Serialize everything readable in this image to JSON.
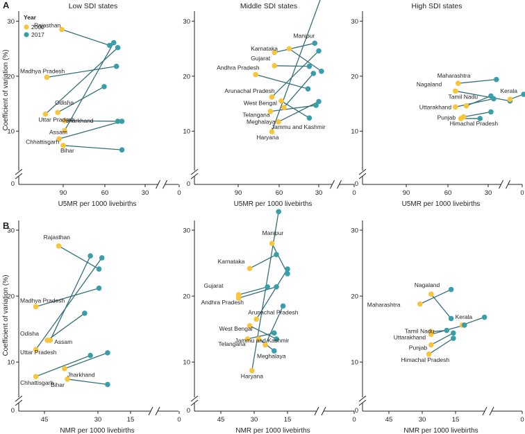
{
  "colors": {
    "y2000": "#f8c43a",
    "y2017": "#3a9ea8",
    "line": "#336f7a",
    "axis": "#231f20"
  },
  "chart_data": {
    "type": "scatter",
    "legend": {
      "title": "Year",
      "entries": [
        "2000",
        "2017"
      ],
      "placement": "top-left"
    },
    "ylabel": "Coefficient of variation (%)",
    "columns": [
      "Low SDI states",
      "Middle SDI states",
      "High SDI states"
    ],
    "rows": [
      {
        "letter": "A",
        "xlabel": "U5MR per 1000 livebirths",
        "xlim": [
          105,
          0
        ],
        "xticks": [
          "90",
          "60",
          "30",
          "0"
        ],
        "ylim": [
          5,
          35
        ],
        "yticks": [
          "10",
          "20",
          "30"
        ],
        "panels": [
          {
            "title": "Low SDI states",
            "states": [
              {
                "name": "Rajasthan",
                "x2000": 91,
                "y2000": 28.5,
                "x2017": 56,
                "y2017": 25.6
              },
              {
                "name": "Madhya Pradesh",
                "x2000": 102,
                "y2000": 19.8,
                "x2017": 51,
                "y2017": 21.8
              },
              {
                "name": "Odisha",
                "x2000": 94,
                "y2000": 13.4,
                "x2017": 60,
                "y2017": 18.1
              },
              {
                "name": "Uttar Pradesh",
                "x2000": 103,
                "y2000": 13.1,
                "x2017": 50,
                "y2017": 25.2
              },
              {
                "name": "Jharkhand",
                "x2000": 89,
                "y2000": 11.9,
                "x2017": 50,
                "y2017": 11.8
              },
              {
                "name": "Assam",
                "x2000": 89,
                "y2000": 10.1,
                "x2017": 53,
                "y2017": 26.1
              },
              {
                "name": "Chhattisgarh",
                "x2000": 93,
                "y2000": 8.6,
                "x2017": 47,
                "y2017": 11.8
              },
              {
                "name": "Bihar",
                "x2000": 90,
                "y2000": 7.4,
                "x2017": 47,
                "y2017": 6.6
              }
            ]
          },
          {
            "title": "Middle SDI states",
            "states": [
              {
                "name": "Manipur",
                "x2000": 52,
                "y2000": 25.0,
                "x2017": 28,
                "y2017": 20.9
              },
              {
                "name": "Karnataka",
                "x2000": 63,
                "y2000": 24.3,
                "x2017": 33,
                "y2017": 26.0
              },
              {
                "name": "Gujarat",
                "x2000": 63,
                "y2000": 21.9,
                "x2017": 37,
                "y2017": 21.8
              },
              {
                "name": "Andhra Pradesh",
                "x2000": 77,
                "y2000": 20.3,
                "x2017": 38,
                "y2017": 17.7
              },
              {
                "name": "Arunachal Pradesh",
                "x2000": 65,
                "y2000": 16.2,
                "x2017": 30,
                "y2017": 24.6
              },
              {
                "name": "West Bengal",
                "x2000": 58,
                "y2000": 15.5,
                "x2017": 37,
                "y2017": 12.4
              },
              {
                "name": "Telangana",
                "x2000": 66,
                "y2000": 13.6,
                "x2017": 32,
                "y2017": 14.7
              },
              {
                "name": "Jammu and Kashmir",
                "x2000": 56,
                "y2000": 14.3,
                "x2017": 34,
                "y2017": 20.5
              },
              {
                "name": "Meghalaya",
                "x2000": 60,
                "y2000": 11.7,
                "x2017": 30,
                "y2017": 15.4
              },
              {
                "name": "Haryana",
                "x2000": 65,
                "y2000": 9.9,
                "x2017": 28,
                "y2017": 34.5
              }
            ]
          },
          {
            "title": "High SDI states",
            "states": [
              {
                "name": "Maharashtra",
                "x2000": 52,
                "y2000": 18.7,
                "x2017": 24,
                "y2017": 19.4
              },
              {
                "name": "Nagaland",
                "x2000": 54,
                "y2000": 17.3,
                "x2017": 14,
                "y2017": 15.5
              },
              {
                "name": "Tamil Nadu",
                "x2000": 46,
                "y2000": 14.6,
                "x2017": 28,
                "y2017": 16.4
              },
              {
                "name": "Kerala",
                "x2000": 14,
                "y2000": 15.8,
                "x2017": 4,
                "y2017": 16.7
              },
              {
                "name": "Uttarakhand",
                "x2000": 54,
                "y2000": 14.4,
                "x2017": 26,
                "y2017": 15.9
              },
              {
                "name": "Punjab",
                "x2000": 48,
                "y2000": 12.6,
                "x2017": 28,
                "y2017": 13.5
              },
              {
                "name": "Himachal Pradesh",
                "x2000": 50,
                "y2000": 12.3,
                "x2017": 36,
                "y2017": 12.3
              }
            ]
          }
        ]
      },
      {
        "letter": "B",
        "xlabel": "NMR per 1000 livebirths",
        "xlim": [
          52,
          0
        ],
        "xticks": [
          "45",
          "30",
          "15",
          "0"
        ],
        "ylim": [
          5,
          33
        ],
        "yticks": [
          "10",
          "20",
          "30"
        ],
        "panels": [
          {
            "title": "Low SDI states",
            "states": [
              {
                "name": "Rajasthan",
                "x2000": 40,
                "y2000": 27.6,
                "x2017": 26,
                "y2017": 24.1
              },
              {
                "name": "Madhya Pradesh",
                "x2000": 48,
                "y2000": 18.4,
                "x2017": 26,
                "y2017": 21.2
              },
              {
                "name": "Odisha",
                "x2000": 44,
                "y2000": 13.3,
                "x2017": 31,
                "y2017": 17.4
              },
              {
                "name": "Assam",
                "x2000": 43,
                "y2000": 13.3,
                "x2017": 29,
                "y2017": 26.1
              },
              {
                "name": "Uttar Pradesh",
                "x2000": 48,
                "y2000": 11.9,
                "x2017": 25,
                "y2017": 25.8
              },
              {
                "name": "Jharkhand",
                "x2000": 38,
                "y2000": 9.0,
                "x2017": 23,
                "y2017": 11.4
              },
              {
                "name": "Chhattisgarh",
                "x2000": 48,
                "y2000": 7.8,
                "x2017": 29,
                "y2017": 11.0
              },
              {
                "name": "Bihar",
                "x2000": 37,
                "y2000": 7.4,
                "x2017": 23,
                "y2017": 6.6
              }
            ]
          },
          {
            "title": "Middle SDI states",
            "states": [
              {
                "name": "Manipur",
                "x2000": 22,
                "y2000": 28.0,
                "x2017": 15,
                "y2017": 23.4
              },
              {
                "name": "Karnataka",
                "x2000": 32,
                "y2000": 24.2,
                "x2017": 20,
                "y2017": 26.3
              },
              {
                "name": "Gujarat",
                "x2000": 37,
                "y2000": 20.2,
                "x2017": 24,
                "y2017": 21.4
              },
              {
                "name": "Andhra Pradesh",
                "x2000": 37,
                "y2000": 19.7,
                "x2017": 20,
                "y2017": 21.4
              },
              {
                "name": "Arunachal Pradesh",
                "x2000": 29,
                "y2000": 16.5,
                "x2017": 15,
                "y2017": 24.1
              },
              {
                "name": "West Bengal",
                "x2000": 32,
                "y2000": 15.5,
                "x2017": 20,
                "y2017": 13.5
              },
              {
                "name": "Jammu and Kashmir",
                "x2000": 28,
                "y2000": 13.5,
                "x2017": 21,
                "y2017": 11.7
              },
              {
                "name": "Telangana",
                "x2000": 33,
                "y2000": 13.5,
                "x2017": 21,
                "y2017": 14.4
              },
              {
                "name": "Meghalaya",
                "x2000": 25,
                "y2000": 12.6,
                "x2017": 17,
                "y2017": 18.5
              },
              {
                "name": "Haryana",
                "x2000": 31,
                "y2000": 8.7,
                "x2017": 19,
                "y2017": 32.8
              }
            ]
          },
          {
            "title": "High SDI states",
            "states": [
              {
                "name": "Nagaland",
                "x2000": 26,
                "y2000": 20.3,
                "x2017": 17,
                "y2017": 16.6
              },
              {
                "name": "Maharashtra",
                "x2000": 31,
                "y2000": 18.8,
                "x2017": 17,
                "y2017": 21.0
              },
              {
                "name": "Kerala",
                "x2000": 12,
                "y2000": 15.6,
                "x2017": 2,
                "y2017": 16.8
              },
              {
                "name": "Tamil Nadu",
                "x2000": 26,
                "y2000": 14.6,
                "x2017": 19,
                "y2017": 14.8
              },
              {
                "name": "Uttarakhand",
                "x2000": 26,
                "y2000": 14.2,
                "x2017": 11,
                "y2017": 15.6
              },
              {
                "name": "Punjab",
                "x2000": 26,
                "y2000": 12.6,
                "x2017": 16,
                "y2017": 14.4
              },
              {
                "name": "Himachal Pradesh",
                "x2000": 27,
                "y2000": 11.2,
                "x2017": 16,
                "y2017": 13.6
              }
            ]
          }
        ]
      }
    ]
  }
}
